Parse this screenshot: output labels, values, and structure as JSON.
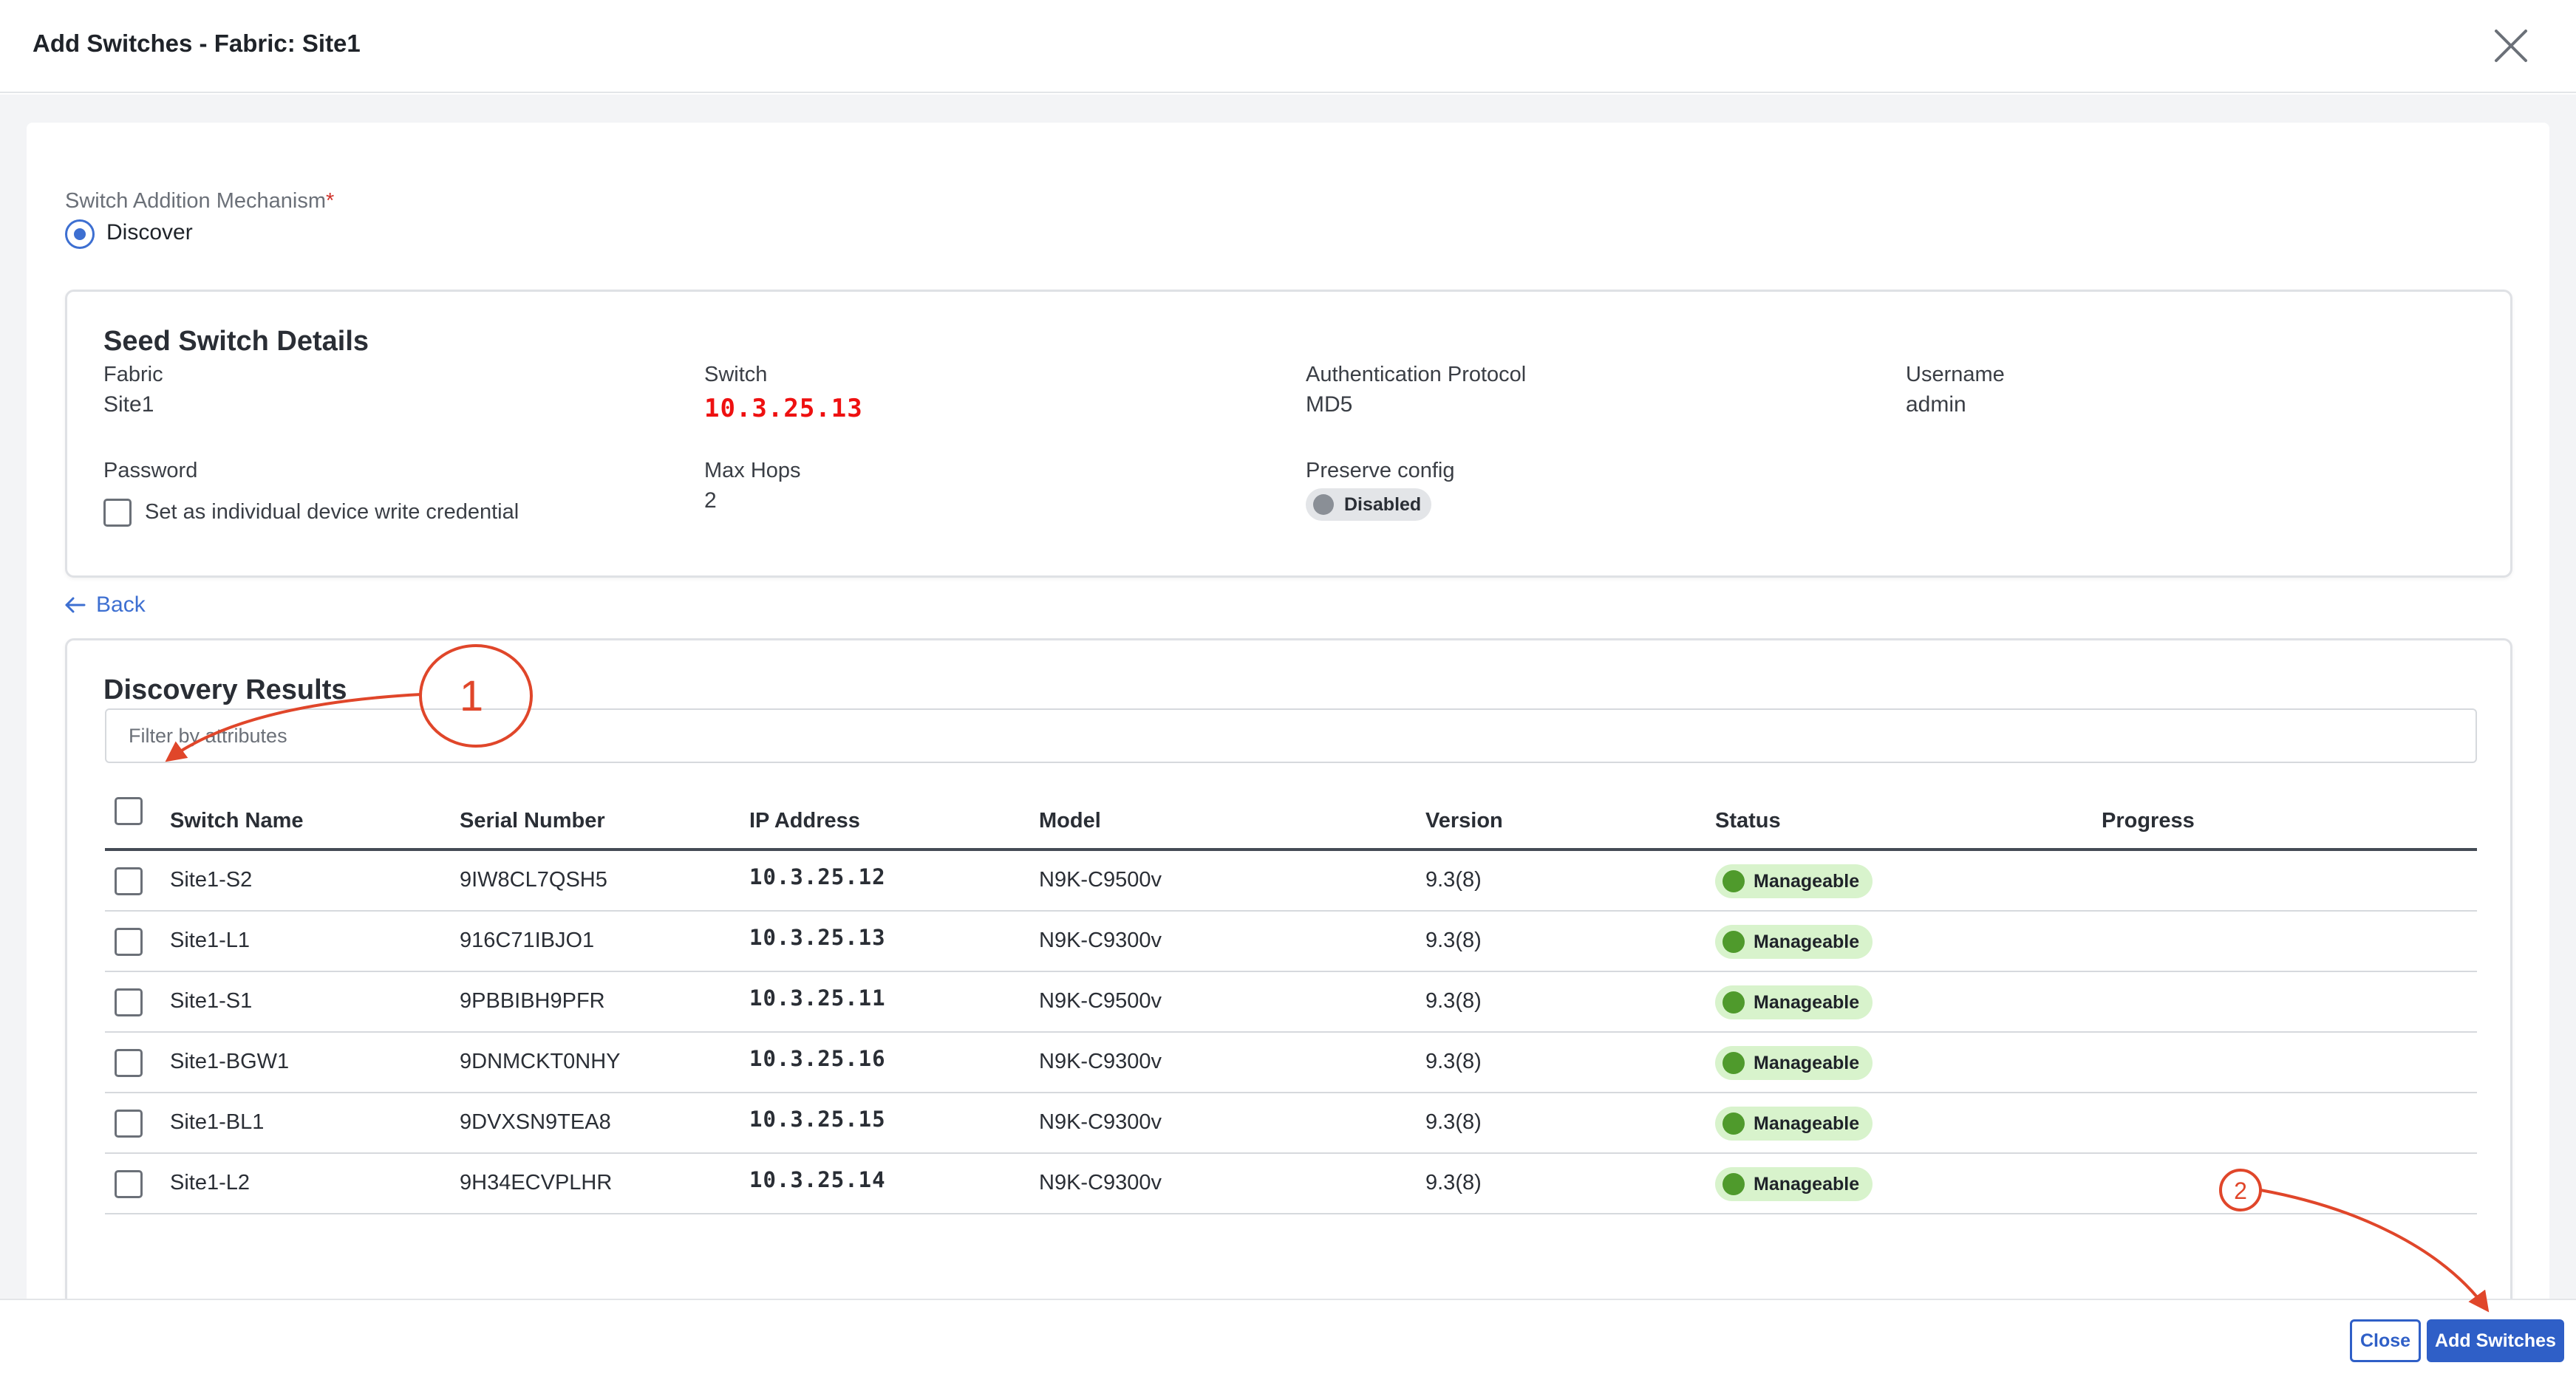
{
  "dialog": {
    "title": "Add Switches - Fabric: Site1"
  },
  "mechanism": {
    "label": "Switch Addition Mechanism",
    "required_mark": "*",
    "option": "Discover"
  },
  "seed": {
    "title": "Seed Switch Details",
    "fabric": {
      "label": "Fabric",
      "value": "Site1"
    },
    "switch": {
      "label": "Switch",
      "value": "10.3.25.13"
    },
    "auth": {
      "label": "Authentication Protocol",
      "value": "MD5"
    },
    "username": {
      "label": "Username",
      "value": "admin"
    },
    "password": {
      "label": "Password",
      "checkbox_label": "Set as individual device write credential"
    },
    "max_hops": {
      "label": "Max Hops",
      "value": "2"
    },
    "preserve": {
      "label": "Preserve config",
      "value": "Disabled"
    }
  },
  "back_label": "Back",
  "discovery": {
    "title": "Discovery Results",
    "filter_placeholder": "Filter by attributes",
    "columns": [
      "Switch Name",
      "Serial Number",
      "IP Address",
      "Model",
      "Version",
      "Status",
      "Progress"
    ],
    "rows": [
      {
        "name": "Site1-S2",
        "serial": "9IW8CL7QSH5",
        "ip": "10.3.25.12",
        "model": "N9K-C9500v",
        "version": "9.3(8)",
        "status": "Manageable"
      },
      {
        "name": "Site1-L1",
        "serial": "916C71IBJO1",
        "ip": "10.3.25.13",
        "model": "N9K-C9300v",
        "version": "9.3(8)",
        "status": "Manageable"
      },
      {
        "name": "Site1-S1",
        "serial": "9PBBIBH9PFR",
        "ip": "10.3.25.11",
        "model": "N9K-C9500v",
        "version": "9.3(8)",
        "status": "Manageable"
      },
      {
        "name": "Site1-BGW1",
        "serial": "9DNMCKT0NHY",
        "ip": "10.3.25.16",
        "model": "N9K-C9300v",
        "version": "9.3(8)",
        "status": "Manageable"
      },
      {
        "name": "Site1-BL1",
        "serial": "9DVXSN9TEA8",
        "ip": "10.3.25.15",
        "model": "N9K-C9300v",
        "version": "9.3(8)",
        "status": "Manageable"
      },
      {
        "name": "Site1-L2",
        "serial": "9H34ECVPLHR",
        "ip": "10.3.25.14",
        "model": "N9K-C9300v",
        "version": "9.3(8)",
        "status": "Manageable"
      }
    ]
  },
  "annotations": {
    "callout_1": "1",
    "callout_2": "2"
  },
  "footer": {
    "close_label": "Close",
    "add_label": "Add Switches"
  },
  "colors": {
    "accent": "#2f5fc7",
    "ip_highlight": "#ee1010",
    "annotation": "#e0462a",
    "status_ok": "#4f9a2c"
  }
}
